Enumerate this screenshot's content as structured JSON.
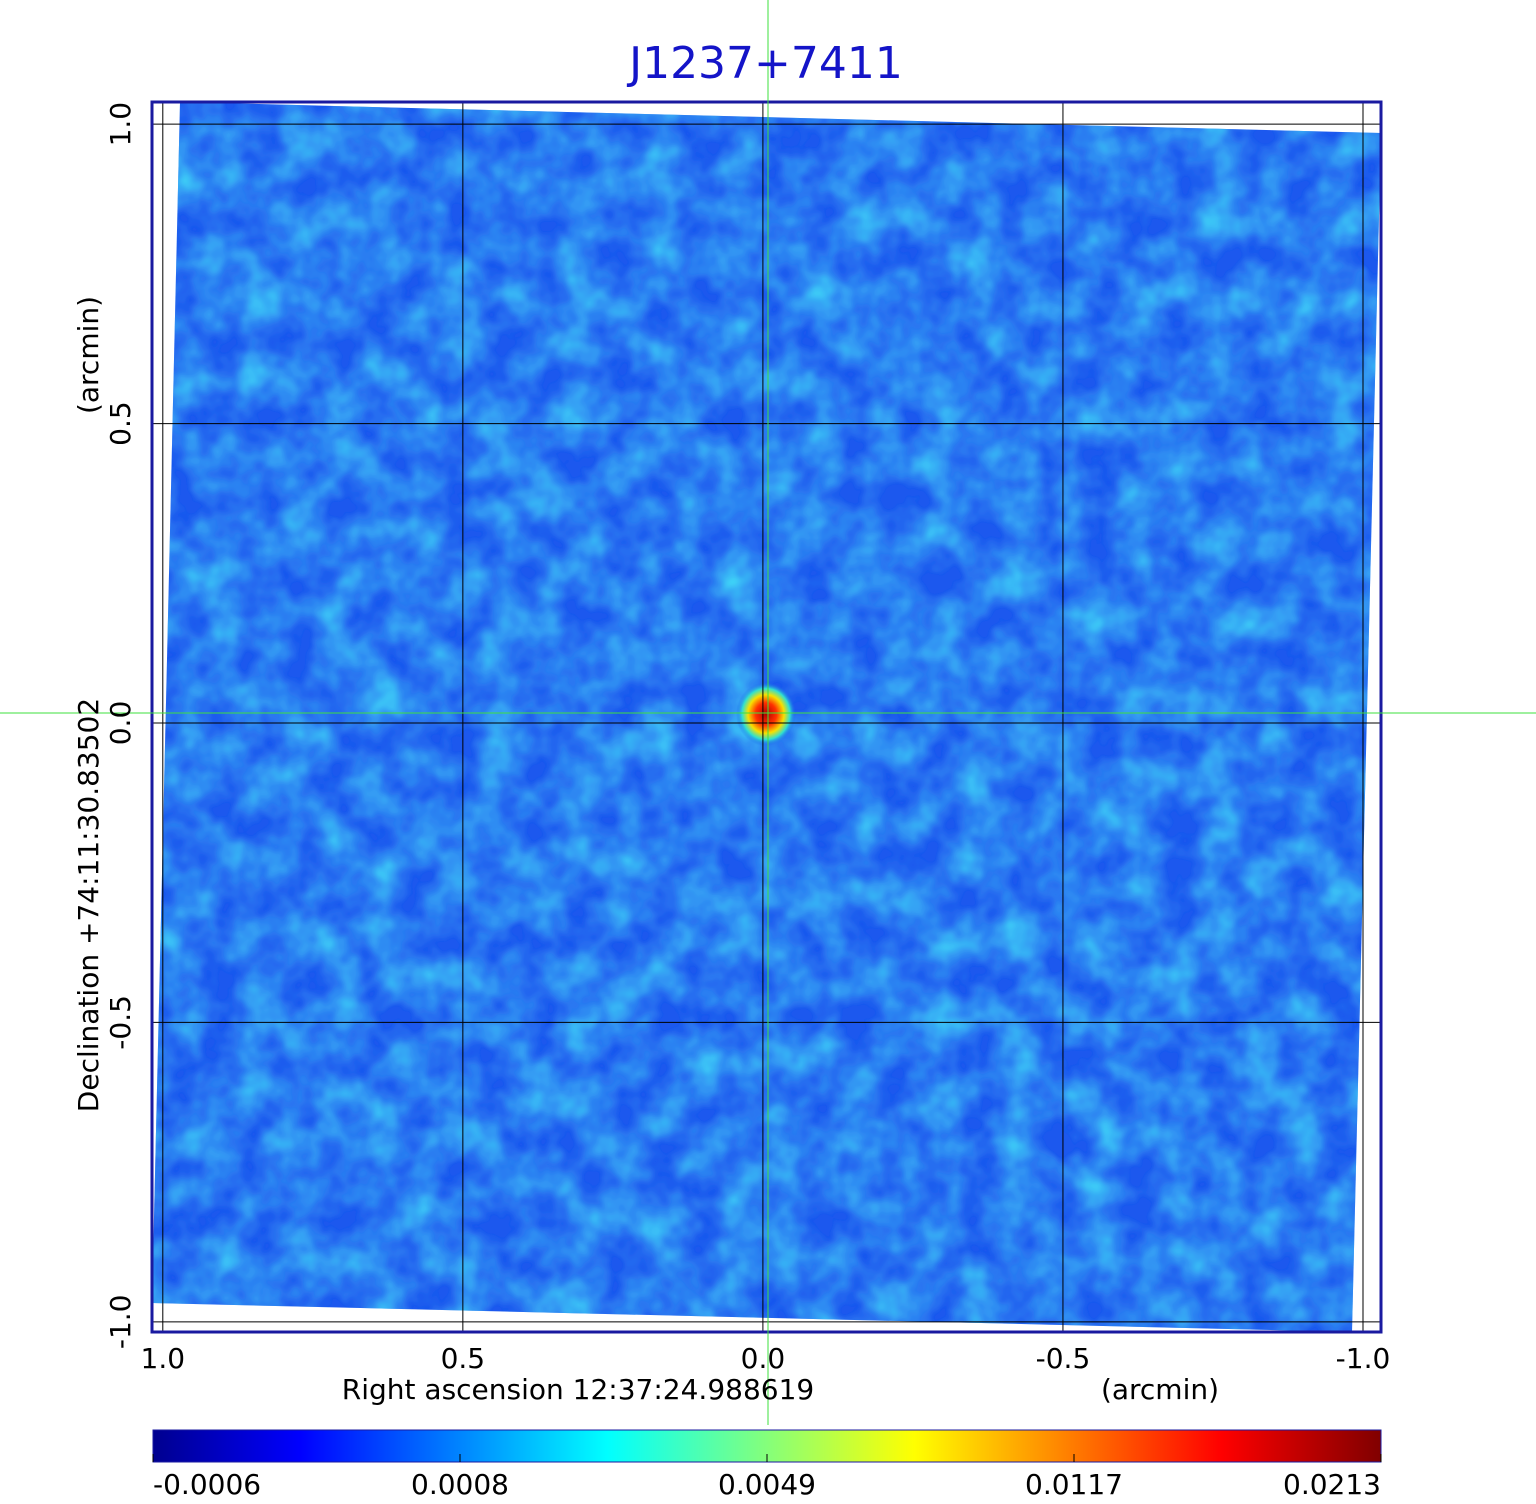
{
  "chart_data": {
    "type": "image",
    "title": "J1237+7411",
    "xlabel": "Right ascension  12:37:24.988619",
    "xunit": "(arcmin)",
    "ylabel": "Declination  +74:11:30.83502",
    "yunit": "(arcmin)",
    "xlim": [
      1.018,
      -1.03
    ],
    "ylim": [
      -1.017,
      1.037
    ],
    "xticks": [
      {
        "value": 1,
        "label": "1.0"
      },
      {
        "value": 0.5,
        "label": "0.5"
      },
      {
        "value": 0,
        "label": "0.0"
      },
      {
        "value": -0.5,
        "label": "-0.5"
      },
      {
        "value": -1,
        "label": "-1.0"
      }
    ],
    "yticks": [
      {
        "value": -1,
        "label": "-1.0"
      },
      {
        "value": -0.5,
        "label": "-0.5"
      },
      {
        "value": 0,
        "label": "0.0"
      },
      {
        "value": 0.5,
        "label": "0.5"
      },
      {
        "value": 1,
        "label": "1.0"
      }
    ],
    "grid": true,
    "colorbar": {
      "colormap": "jet",
      "ticks": [
        -0.0006,
        0.0008,
        0.0049,
        0.0117,
        0.0213
      ]
    }
  }
}
